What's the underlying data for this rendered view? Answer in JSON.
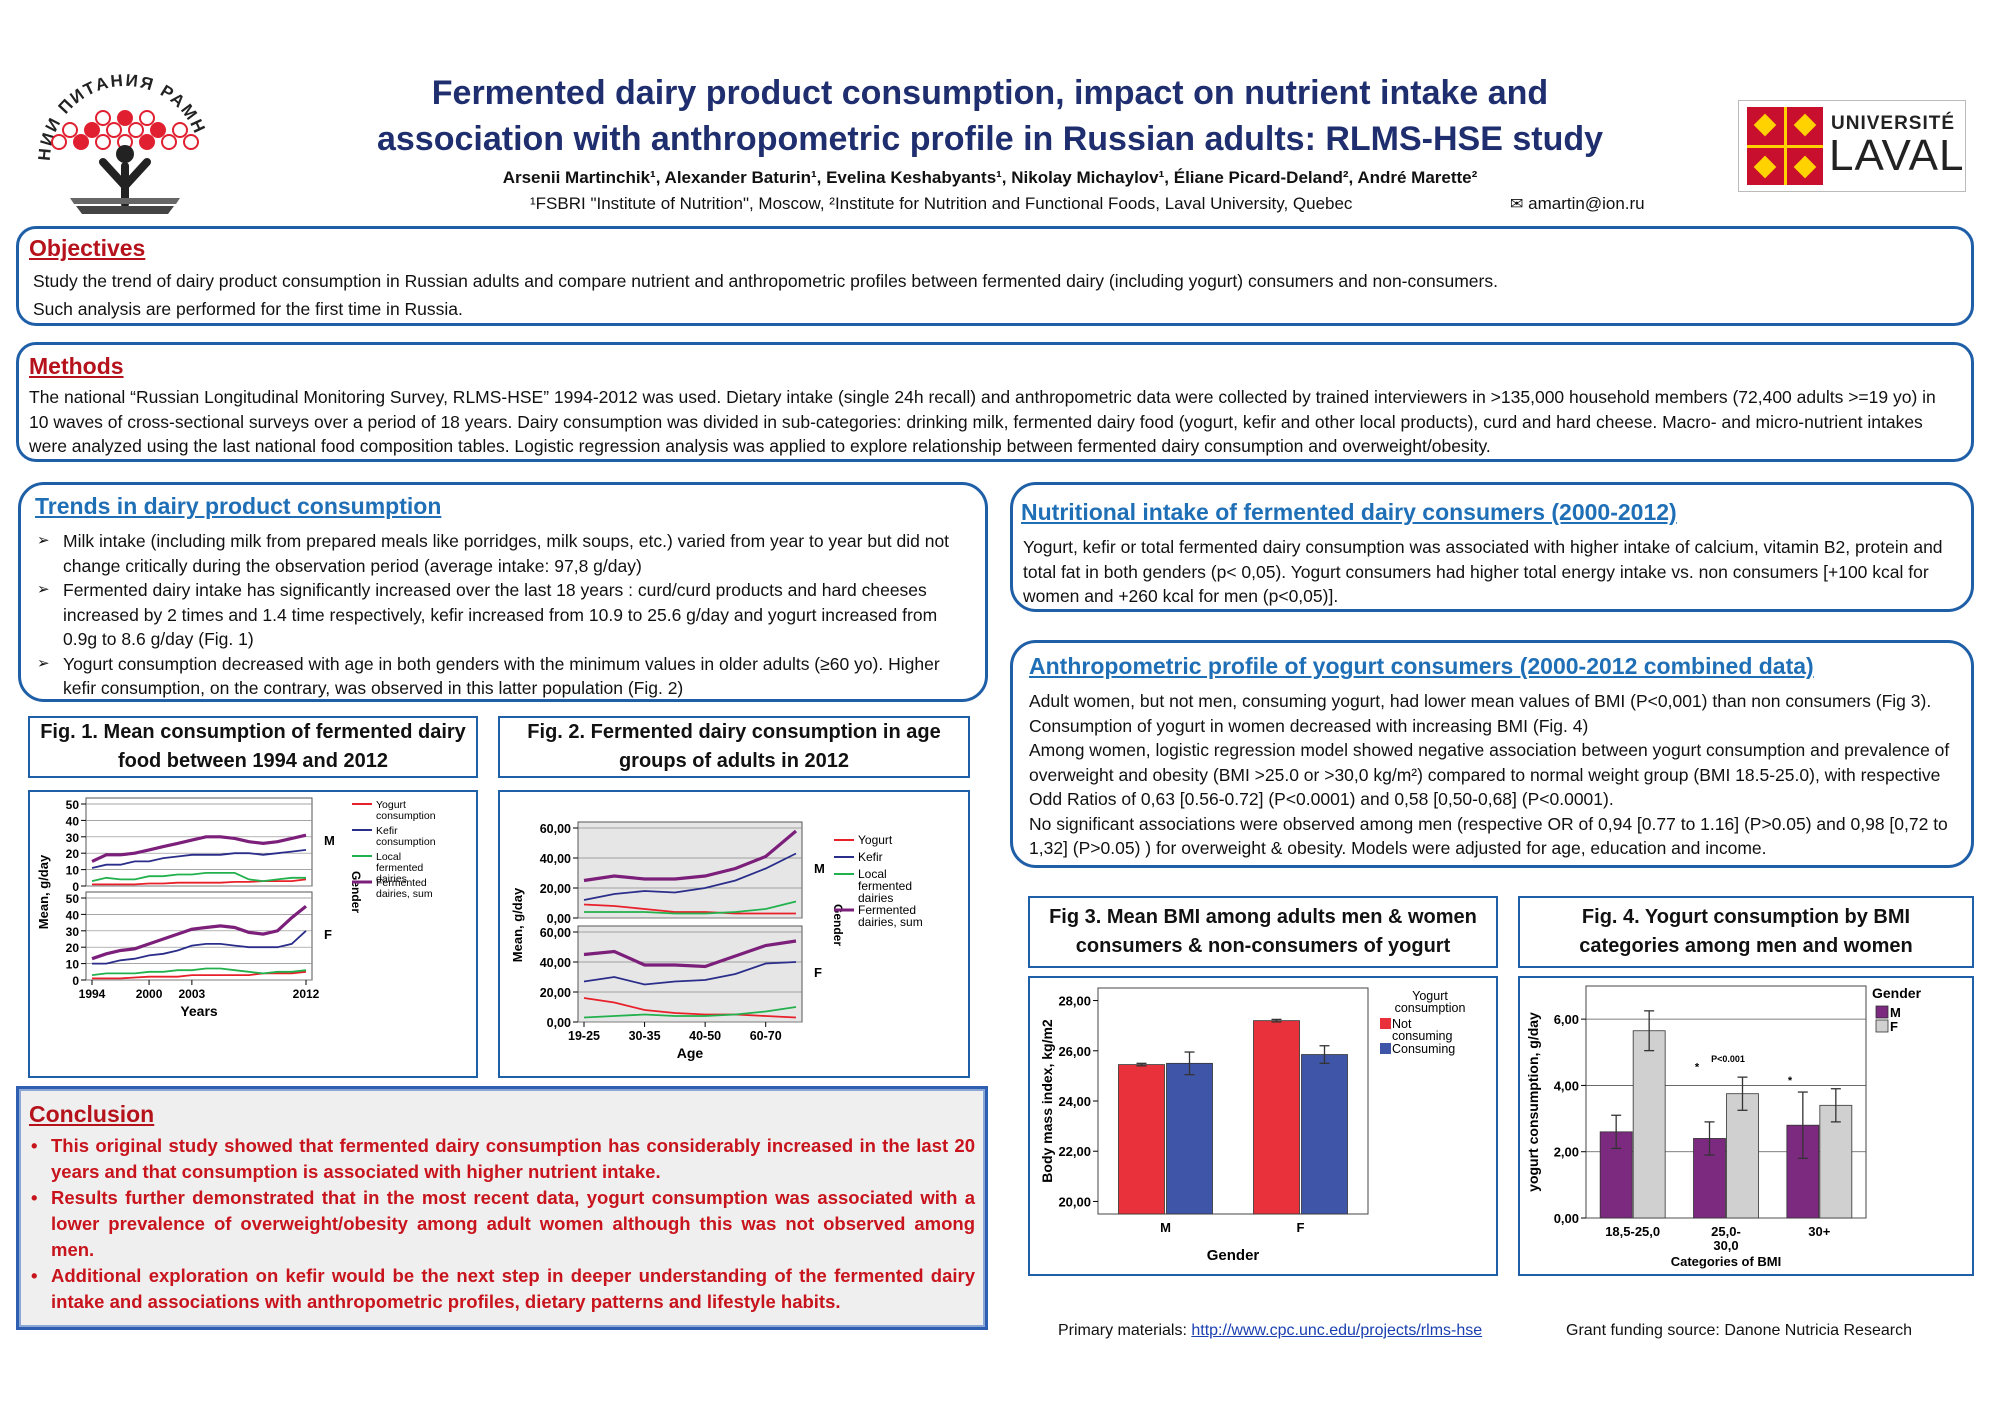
{
  "header": {
    "title_line1": "Fermented dairy product consumption, impact on nutrient intake and",
    "title_line2": "association with anthropometric profile in Russian adults: RLMS-HSE study",
    "authors": "Arsenii Martinchik¹, Alexander Baturin¹, Evelina Keshabyants¹, Nikolay Michaylov¹, Éliane Picard-Deland², André Marette²",
    "affiliations": "¹FSBRI \"Institute of Nutrition\", Moscow,  ²Institute for Nutrition and Functional Foods, Laval University, Quebec",
    "email": "amartin@ion.ru",
    "left_logo_text": "НИИ ПИТАНИЯ РАМН",
    "right_logo_line1": "UNIVERSITÉ",
    "right_logo_line2": "LAVAL"
  },
  "objectives": {
    "title": "Objectives",
    "line1": "Study the trend of dairy product consumption in Russian adults and compare nutrient and anthropometric profiles between fermented dairy (including yogurt) consumers and non-consumers.",
    "line2": "Such analysis are performed for the first time in Russia."
  },
  "methods": {
    "title": "Methods",
    "text": "The national “Russian Longitudinal Monitoring Survey, RLMS-HSE” 1994-2012 was used. Dietary intake (single 24h recall) and anthropometric data were collected by trained interviewers in >135,000 household members  (72,400 adults >=19 yo) in 10 waves of cross-sectional  surveys  over a period of 18 years.  Dairy consumption was divided in sub-categories:  drinking  milk, fermented dairy food  (yogurt, kefir and other local  products), curd and hard cheese. Macro- and micro-nutrient intakes were analyzed using the last national food composition tables. Logistic regression analysis was applied to explore relationship between fermented dairy consumption and overweight/obesity."
  },
  "trends": {
    "title": "Trends in dairy product consumption",
    "bullets": [
      "Milk intake (including milk from prepared meals like porridges, milk soups, etc.) varied from year to year but did not change critically during the observation period (average intake:  97,8 g/day)",
      "Fermented dairy intake has significantly increased over the last 18 years : curd/curd products and hard cheeses increased by 2 times and 1.4 time respectively,  kefir increased from 10.9 to 25.6 g/day and yogurt increased from 0.9g to 8.6 g/day (Fig. 1)",
      "Yogurt consumption decreased with age in both genders with the minimum values in older adults  (≥60 yo). Higher kefir consumption, on the contrary, was observed in this latter population (Fig. 2)"
    ]
  },
  "nutritional": {
    "title": "Nutritional intake of fermented dairy consumers (2000-2012)",
    "text": "Yogurt, kefir or total fermented dairy consumption was associated with higher intake of calcium, vitamin B2, protein and total fat in both genders (p< 0,05). Yogurt consumers had higher total energy intake  vs. non consumers [+100 kcal for women and +260 kcal for men (p<0,05)]."
  },
  "anthropometric": {
    "title": "Anthropometric profile of yogurt consumers (2000-2012 combined data)",
    "p1": "Adult women, but not men, consuming yogurt, had lower mean values of BMI (P<0,001) than non consumers (Fig 3). Consumption of yogurt in women  decreased  with increasing BMI (Fig. 4)",
    "p2": "Among women, logistic regression model showed negative association between yogurt consumption and prevalence of overweight and obesity (BMI >25.0 or >30,0 kg/m²) compared to normal weight group (BMI 18.5-25.0), with respective Odd Ratios of 0,63 [0.56-0.72] (P<0.0001) and 0,58 [0,50-0,68] (P<0.0001).",
    "p3": "No significant associations were observed among men (respective OR of 0,94 [0.77 to 1.16] (P>0.05) and 0,98 [0,72 to 1,32] (P>0.05) ) for overweight & obesity. Models were adjusted for age, education and income."
  },
  "conclusion": {
    "title": "Conclusion",
    "bullets": [
      "This original study showed that fermented dairy consumption has considerably increased in the last 20 years and that consumption is associated with higher nutrient intake.",
      "Results further demonstrated that in the most recent data, yogurt consumption was associated with a lower prevalence of overweight/obesity among adult women although this was not observed among men.",
      "Additional exploration on kefir would be the next step in deeper understanding of the fermented dairy intake and associations with anthropometric profiles, dietary patterns and lifestyle habits."
    ]
  },
  "figure_titles": {
    "fig1": "Fig. 1. Mean  consumption of fermented dairy food between 1994 and 2012",
    "fig2": "Fig. 2. Fermented dairy consumption in age groups of adults in 2012",
    "fig3": "Fig 3. Mean BMI among adults men & women consumers & non-consumers of yogurt",
    "fig4": "Fig. 4. Yogurt consumption by BMI categories among men and women"
  },
  "footer": {
    "primary_label": "Primary materials: ",
    "primary_link": "http://www.cpc.unc.edu/projects/rlms-hse",
    "grant": "Grant funding source: Danone Nutricia Research"
  },
  "colors": {
    "yogurt": "#e8202a",
    "kefir": "#2a2e8a",
    "local": "#22b14c",
    "fermented_sum": "#7b1f7a",
    "not_consuming": "#e8313b",
    "consuming": "#3f56a8",
    "male_bar": "#7b2a7f",
    "female_bar": "#d0d0d0"
  },
  "chart_data": [
    {
      "type": "line",
      "title": "Fig. 1. Mean  consumption of fermented dairy food between 1994 and 2012",
      "xlabel": "Years",
      "ylabel": "Mean, g/day",
      "facet_label": "Gender",
      "x": [
        1994,
        1995,
        1996,
        1998,
        2000,
        2001,
        2002,
        2003,
        2004,
        2005,
        2006,
        2008,
        2009,
        2010,
        2011,
        2012
      ],
      "xticks": [
        "1994",
        "2000",
        "2003",
        "2012"
      ],
      "yticks": [
        0,
        10,
        20,
        30,
        40,
        50
      ],
      "ylim": [
        0,
        50
      ],
      "legend": [
        "Yogurt consumption",
        "Kefir consumption",
        "Local fermented dairies",
        "Fermented dairies, sum"
      ],
      "panels": [
        {
          "label": "M",
          "series": [
            {
              "name": "Yogurt consumption",
              "values": [
                1,
                1,
                1,
                1,
                1.5,
                1.5,
                2,
                2,
                2,
                2,
                2.5,
                2.5,
                3,
                3,
                3,
                4
              ]
            },
            {
              "name": "Kefir consumption",
              "values": [
                11,
                13,
                13,
                15,
                15,
                17,
                18,
                19,
                19,
                19,
                20,
                20,
                19,
                20,
                21,
                22
              ]
            },
            {
              "name": "Local fermented dairies",
              "values": [
                3,
                5,
                4,
                4,
                6,
                6,
                7,
                7,
                8,
                8,
                8,
                4,
                3,
                4,
                5,
                5
              ]
            },
            {
              "name": "Fermented dairies, sum",
              "values": [
                15,
                19,
                19,
                20,
                22,
                24,
                26,
                28,
                30,
                30,
                29,
                27,
                26,
                27,
                29,
                31
              ]
            }
          ]
        },
        {
          "label": "F",
          "series": [
            {
              "name": "Yogurt consumption",
              "values": [
                1,
                1,
                1,
                1.5,
                2,
                2,
                2,
                3,
                3,
                3,
                3,
                3,
                4,
                4,
                4,
                5
              ]
            },
            {
              "name": "Kefir consumption",
              "values": [
                10,
                10,
                12,
                13,
                15,
                16,
                18,
                21,
                22,
                22,
                21,
                20,
                20,
                20,
                22,
                30
              ]
            },
            {
              "name": "Local fermented dairies",
              "values": [
                3,
                4,
                4,
                4,
                5,
                5,
                6,
                6,
                7,
                7,
                6,
                5,
                4,
                5,
                5,
                6
              ]
            },
            {
              "name": "Fermented dairies, sum",
              "values": [
                13,
                16,
                18,
                19,
                22,
                25,
                28,
                31,
                32,
                33,
                32,
                29,
                28,
                30,
                38,
                45
              ]
            }
          ]
        }
      ]
    },
    {
      "type": "line",
      "title": "Fig. 2. Fermented dairy consumption in age groups of adults in 2012",
      "xlabel": "Age",
      "ylabel": "Mean, g/day",
      "facet_label": "Gender",
      "x": [
        "19-25",
        "25-30",
        "30-35",
        "35-40",
        "40-50",
        "50-60",
        "60-70",
        "70+"
      ],
      "xticks": [
        "19-25",
        "30-35",
        "40-50",
        "60-70"
      ],
      "yticks": [
        0,
        20,
        40,
        60
      ],
      "yticklabels": [
        "0,00",
        "20,00",
        "40,00",
        "60,00"
      ],
      "ylim": [
        0,
        60
      ],
      "legend": [
        "Yogurt",
        "Kefir",
        "Local fermented dairies",
        "Fermented dairies, sum"
      ],
      "panels": [
        {
          "label": "M",
          "series": [
            {
              "name": "Yogurt",
              "values": [
                9,
                8,
                6,
                4,
                4,
                3,
                3,
                3
              ]
            },
            {
              "name": "Kefir",
              "values": [
                12,
                16,
                18,
                17,
                20,
                25,
                33,
                43
              ]
            },
            {
              "name": "Local fermented dairies",
              "values": [
                4,
                4,
                4,
                3,
                3,
                4,
                6,
                11
              ]
            },
            {
              "name": "Fermented dairies, sum",
              "values": [
                25,
                28,
                26,
                26,
                28,
                33,
                41,
                58
              ]
            }
          ]
        },
        {
          "label": "F",
          "series": [
            {
              "name": "Yogurt",
              "values": [
                16,
                13,
                8,
                6,
                5,
                5,
                4,
                3
              ]
            },
            {
              "name": "Kefir",
              "values": [
                27,
                30,
                25,
                27,
                28,
                32,
                39,
                40
              ]
            },
            {
              "name": "Local fermented dairies",
              "values": [
                3,
                4,
                5,
                4,
                4,
                5,
                7,
                10
              ]
            },
            {
              "name": "Fermented dairies, sum",
              "values": [
                45,
                47,
                38,
                38,
                37,
                44,
                51,
                54
              ]
            }
          ]
        }
      ]
    },
    {
      "type": "bar",
      "title": "Fig 3. Mean BMI among adults men & women consumers & non-consumers of yogurt",
      "xlabel": "Gender",
      "ylabel": "Body mass index, kg/m2",
      "categories": [
        "M",
        "F"
      ],
      "ylim": [
        19.5,
        28.5
      ],
      "yticks": [
        20,
        22,
        24,
        26,
        28
      ],
      "yticklabels": [
        "20,00",
        "22,00",
        "24,00",
        "26,00",
        "28,00"
      ],
      "legend_title": "Yogurt consumption",
      "series": [
        {
          "name": "Not consuming",
          "values": [
            25.45,
            27.2
          ],
          "errors": [
            0.05,
            0.05
          ]
        },
        {
          "name": "Consuming",
          "values": [
            25.5,
            25.85
          ],
          "errors": [
            0.45,
            0.35
          ]
        }
      ]
    },
    {
      "type": "bar",
      "title": "Fig. 4. Yogurt consumption by BMI categories among men and women",
      "xlabel": "Categories of BMI",
      "ylabel": "yogurt consumption, g/day",
      "categories": [
        "18,5-25,0",
        "25,0-30,0",
        "30+"
      ],
      "ylim": [
        0,
        7
      ],
      "yticks": [
        0,
        2,
        4,
        6
      ],
      "yticklabels": [
        "0,00",
        "2,00",
        "4,00",
        "6,00"
      ],
      "legend_title": "Gender",
      "series": [
        {
          "name": "M",
          "values": [
            2.6,
            2.4,
            2.8
          ],
          "errors": [
            0.5,
            0.5,
            1.0
          ]
        },
        {
          "name": "F",
          "values": [
            5.65,
            3.75,
            3.4
          ],
          "errors": [
            0.6,
            0.5,
            0.5
          ]
        }
      ],
      "annotations": [
        "P<0.001",
        "*",
        "*"
      ]
    }
  ]
}
